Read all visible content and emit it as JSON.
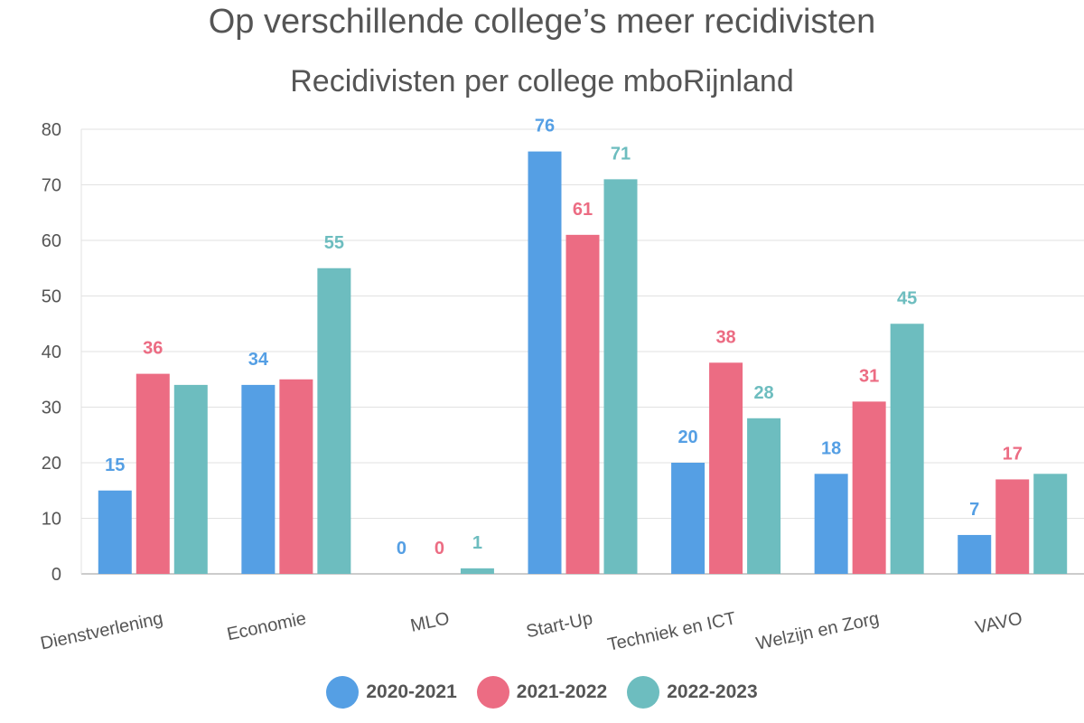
{
  "chart_data": {
    "type": "bar",
    "title": "Op verschillende college’s meer recidivisten",
    "subtitle": "Recidivisten per college mboRijnland",
    "categories": [
      "Dienstverlening",
      "Economie",
      "MLO",
      "Start-Up",
      "Techniek en ICT",
      "Welzijn en Zorg",
      "VAVO"
    ],
    "series": [
      {
        "name": "2020-2021",
        "color": "#559FE4",
        "values": [
          15,
          34,
          0,
          76,
          20,
          18,
          7
        ],
        "labels": [
          "15",
          "34",
          "0",
          "76",
          "20",
          "18",
          "7"
        ]
      },
      {
        "name": "2021-2022",
        "color": "#EC6C83",
        "values": [
          36,
          35,
          0,
          61,
          38,
          31,
          17
        ],
        "labels": [
          "36",
          "",
          "0",
          "61",
          "38",
          "31",
          "17"
        ]
      },
      {
        "name": "2022-2023",
        "color": "#6DBDBF",
        "values": [
          34,
          55,
          1,
          71,
          28,
          45,
          18
        ],
        "labels": [
          "",
          "55",
          "1",
          "71",
          "28",
          "45",
          ""
        ]
      }
    ],
    "ylim": [
      0,
      80
    ],
    "yticks": [
      0,
      10,
      20,
      30,
      40,
      50,
      60,
      70,
      80
    ],
    "grid": true,
    "legend_position": "bottom"
  }
}
